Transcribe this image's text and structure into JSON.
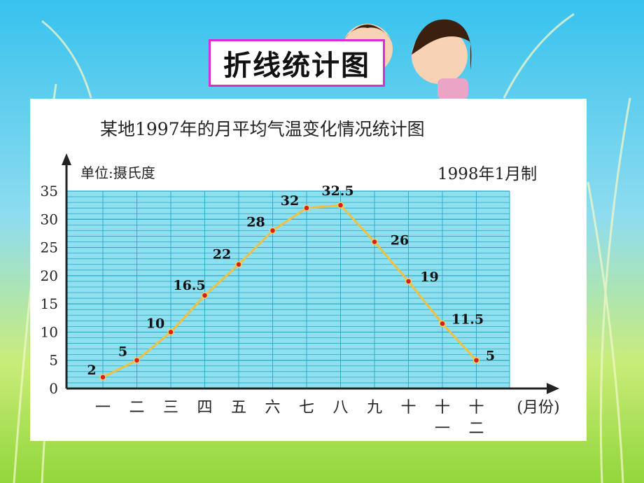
{
  "slide": {
    "banner_title": "折线统计图",
    "colors": {
      "sky": "#3fc6ee",
      "grass": "#a4dc3c",
      "banner_border": "#d82fd0",
      "plot_fill": "#8ee0ee",
      "grid": "#2aa7c9",
      "line": "#f0c040",
      "marker": "#d12020"
    }
  },
  "chart_data": {
    "type": "line",
    "title": "某地1997年的月平均气温变化情况统计图",
    "ylabel": "单位:摄氏度",
    "note": "1998年1月制",
    "xunit": "(月份)",
    "categories": [
      [
        "一"
      ],
      [
        "二"
      ],
      [
        "三"
      ],
      [
        "四"
      ],
      [
        "五"
      ],
      [
        "六"
      ],
      [
        "七"
      ],
      [
        "八"
      ],
      [
        "九"
      ],
      [
        "十"
      ],
      [
        "十",
        "一"
      ],
      [
        "十",
        "二"
      ]
    ],
    "values": [
      2,
      5,
      10,
      16.5,
      22,
      28,
      32,
      32.5,
      26,
      19,
      11.5,
      5
    ],
    "data_labels": [
      "2",
      "5",
      "10",
      "16.5",
      "22",
      "28",
      "32",
      "32.5",
      "26",
      "19",
      "11.5",
      "5"
    ],
    "yticks": [
      "0",
      "5",
      "10",
      "15",
      "20",
      "25",
      "30",
      "35"
    ],
    "ylim": [
      0,
      35
    ],
    "minor_step": 1,
    "grid": true
  }
}
